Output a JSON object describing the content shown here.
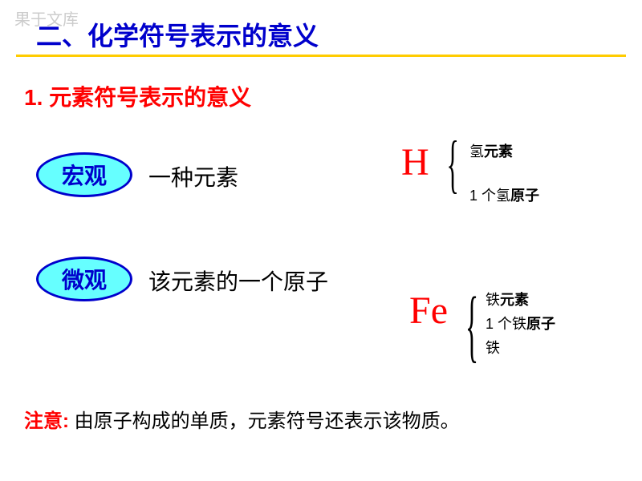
{
  "watermark": "果于文库",
  "header": {
    "text": "二、化学符号表示的意义",
    "color": "#0000cc",
    "underline_color": "#ffcc00"
  },
  "subtitle": {
    "number": "1.",
    "text": "元素符号表示的意义",
    "color": "#ff0000"
  },
  "macro": {
    "oval_label": "宏观",
    "oval_bg": "#66ffff",
    "oval_border": "#0000cc",
    "description": "一种元素"
  },
  "micro": {
    "oval_label": "微观",
    "description": "该元素的一个原子"
  },
  "example_h": {
    "symbol": "H",
    "symbol_color": "#ff0000",
    "meanings": [
      {
        "prefix": "氢",
        "bold": "元素"
      },
      {
        "prefix": "1 个氢",
        "bold": "原子"
      }
    ]
  },
  "example_fe": {
    "symbol": "Fe",
    "meanings": [
      {
        "prefix": "铁",
        "bold": "元素"
      },
      {
        "prefix": "1 个铁",
        "bold": "原子"
      },
      {
        "prefix": "铁",
        "bold": ""
      }
    ]
  },
  "note": {
    "label": "注意:",
    "text": "由原子构成的单质，元素符号还表示该物质。"
  },
  "colors": {
    "red": "#ff0000",
    "blue": "#0000cc",
    "cyan": "#66ffff",
    "yellow": "#ffcc00",
    "black": "#000000",
    "bg": "#ffffff"
  }
}
